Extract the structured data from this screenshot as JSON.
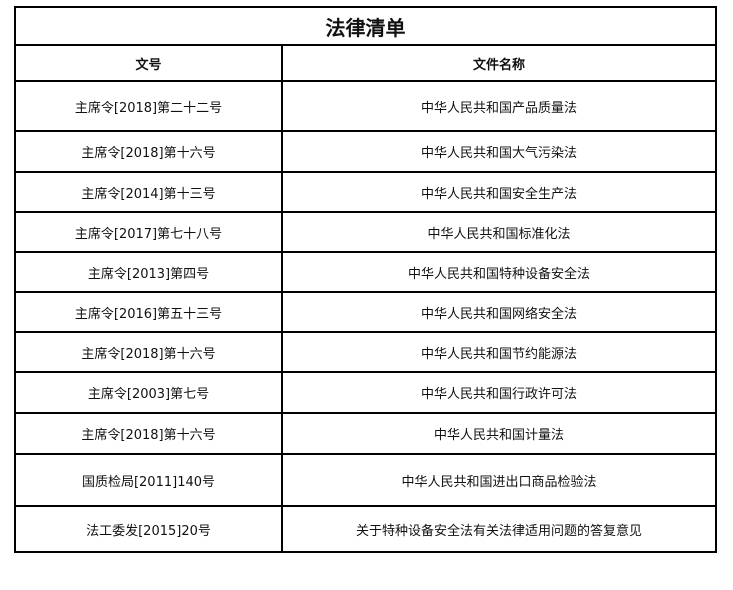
{
  "title": "法律清单",
  "headers": [
    "文号",
    "文件名称"
  ],
  "rows": [
    {
      "number": "主席令[2018]第二十二号",
      "name": "中华人民共和国产品质量法"
    },
    {
      "number": "主席令[2018]第十六号",
      "name": "中华人民共和国大气污染法"
    },
    {
      "number": "主席令[2014]第十三号",
      "name": "中华人民共和国安全生产法"
    },
    {
      "number": "主席令[2017]第七十八号",
      "name": "中华人民共和国标准化法"
    },
    {
      "number": "主席令[2013]第四号",
      "name": "中华人民共和国特种设备安全法"
    },
    {
      "number": "主席令[2016]第五十三号",
      "name": "中华人民共和国网络安全法"
    },
    {
      "number": "主席令[2018]第十六号",
      "name": "中华人民共和国节约能源法"
    },
    {
      "number": "主席令[2003]第七号",
      "name": "中华人民共和国行政许可法"
    },
    {
      "number": "主席令[2018]第十六号",
      "name": "中华人民共和国计量法"
    },
    {
      "number": "国质检局[2011]140号",
      "name": "中华人民共和国进出口商品检验法"
    },
    {
      "number": "法工委发[2015]20号",
      "name": "关于特种设备安全法有关法律适用问题的答复意见"
    }
  ]
}
